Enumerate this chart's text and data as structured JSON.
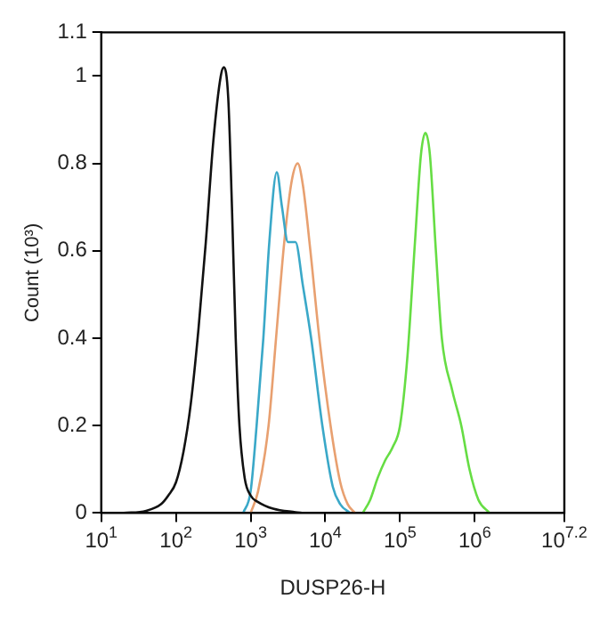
{
  "chart_data": {
    "type": "line",
    "xlabel": "DUSP26-H",
    "ylabel": "Count (10³)",
    "log": "x",
    "grid": false,
    "legend": false,
    "marker": "none",
    "line_style": "solid",
    "xlim": [
      10,
      15848932
    ],
    "ylim": [
      0,
      1.1
    ],
    "xticks": [
      {
        "value": 10,
        "label": "10$^{1}$"
      },
      {
        "value": 100,
        "label": "10$^{2}$"
      },
      {
        "value": 1000,
        "label": "10$^{3}$"
      },
      {
        "value": 10000,
        "label": "10$^{4}$"
      },
      {
        "value": 100000,
        "label": "10$^{5}$"
      },
      {
        "value": 1000000,
        "label": "10$^{6}$"
      },
      {
        "value": 15848932,
        "label": "10$^{7.2}$"
      }
    ],
    "yticks": [
      0,
      0.2,
      0.4,
      0.6,
      0.8,
      1,
      1.1
    ],
    "series": [
      {
        "color": "#111111",
        "x": [
          20,
          40,
          63,
          79,
          100,
          126,
          158,
          200,
          251,
          316,
          398,
          437,
          501,
          562,
          631,
          708,
          832,
          1000,
          1259,
          1995,
          3981,
          5012
        ],
        "values": [
          0,
          0.005,
          0.02,
          0.04,
          0.07,
          0.14,
          0.25,
          0.42,
          0.62,
          0.85,
          1.0,
          1.02,
          0.95,
          0.7,
          0.4,
          0.2,
          0.08,
          0.04,
          0.025,
          0.01,
          0.002,
          0
        ]
      },
      {
        "color": "#3aa8c8",
        "x": [
          794,
          1000,
          1202,
          1479,
          1778,
          2239,
          2630,
          3162,
          3981,
          5012,
          6457,
          9120,
          12589,
          15849,
          21380
        ],
        "values": [
          0,
          0.05,
          0.2,
          0.4,
          0.62,
          0.78,
          0.7,
          0.62,
          0.62,
          0.52,
          0.4,
          0.2,
          0.06,
          0.02,
          0
        ]
      },
      {
        "color": "#e8a070",
        "x": [
          1000,
          1259,
          1738,
          2188,
          2818,
          3548,
          4266,
          5012,
          6310,
          8318,
          11749,
          15849,
          19953,
          25119
        ],
        "values": [
          0,
          0.05,
          0.2,
          0.4,
          0.62,
          0.76,
          0.8,
          0.75,
          0.6,
          0.4,
          0.2,
          0.07,
          0.02,
          0
        ]
      },
      {
        "color": "#66dd44",
        "x": [
          31623,
          39811,
          50119,
          63096,
          79433,
          100000,
          125893,
          158489,
          190546,
          218776,
          251189,
          301995,
          363078,
          501187,
          660693,
          851138,
          1122018,
          1584893
        ],
        "values": [
          0,
          0.03,
          0.08,
          0.12,
          0.15,
          0.2,
          0.36,
          0.62,
          0.82,
          0.87,
          0.82,
          0.6,
          0.4,
          0.28,
          0.2,
          0.1,
          0.03,
          0
        ]
      }
    ]
  }
}
